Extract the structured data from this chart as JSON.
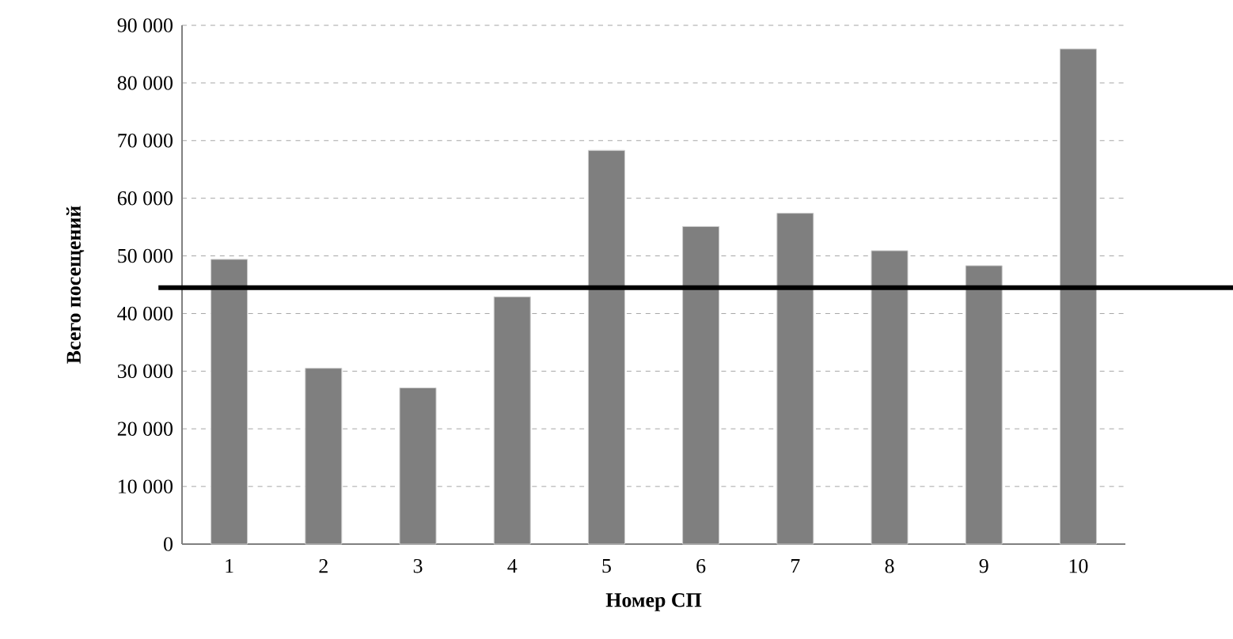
{
  "chart_data": {
    "type": "bar",
    "xlabel": "Номер СП",
    "ylabel": "Всего посещений",
    "categories": [
      "1",
      "2",
      "3",
      "4",
      "5",
      "6",
      "7",
      "8",
      "9",
      "10"
    ],
    "values": [
      49400,
      30500,
      27100,
      42900,
      68300,
      55100,
      57400,
      50900,
      48300,
      85900
    ],
    "color": "#7f7f7f",
    "ylim": [
      0,
      90000
    ],
    "yticks": [
      0,
      {
        "value": 10000,
        "label": "10 000"
      },
      {
        "value": 20000,
        "label": "20 000"
      },
      {
        "value": 30000,
        "label": "30 000"
      },
      {
        "value": 40000,
        "label": "40 000"
      },
      {
        "value": 50000,
        "label": "50 000"
      },
      {
        "value": 60000,
        "label": "60 000"
      },
      {
        "value": 70000,
        "label": "70 000"
      },
      {
        "value": 80000,
        "label": "80 000"
      },
      {
        "value": 90000,
        "label": "90 000"
      }
    ],
    "grid": "y",
    "ref_lines": [
      {
        "axis": "y",
        "value": 44500,
        "color": "#000000"
      }
    ]
  }
}
